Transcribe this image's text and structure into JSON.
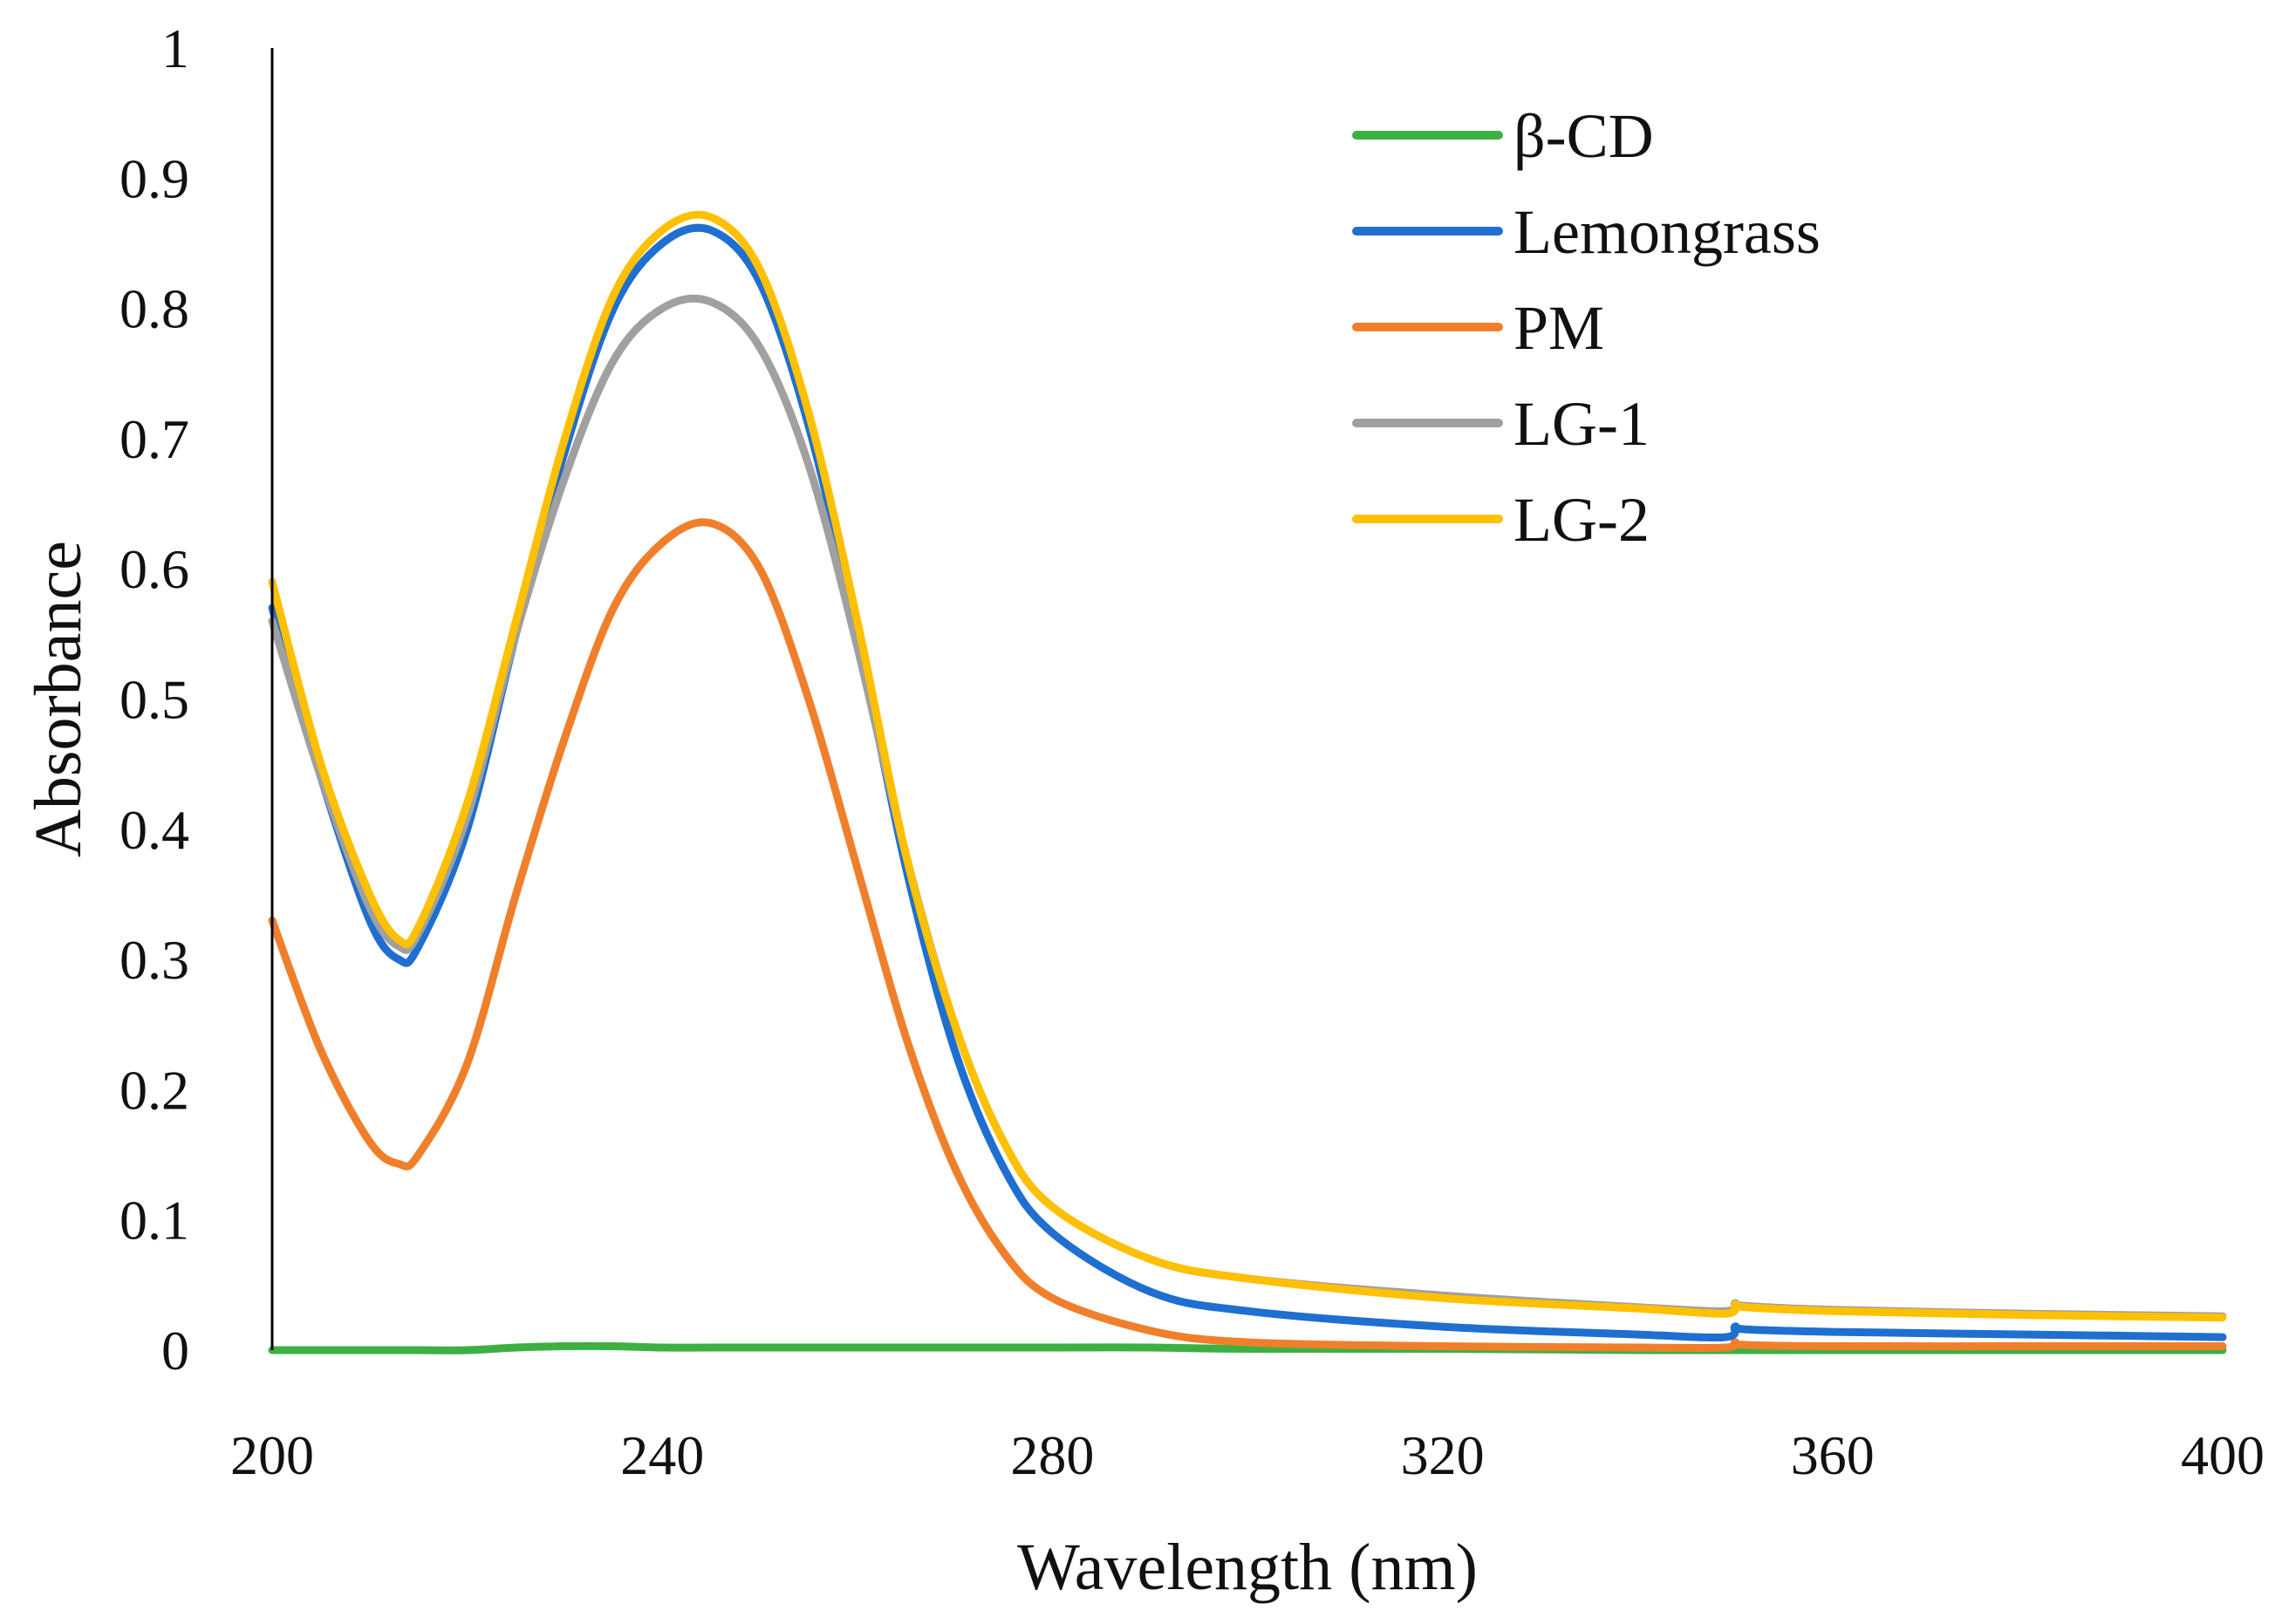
{
  "chart_data": {
    "type": "line",
    "title": "",
    "xlabel": "Wavelength (nm)",
    "ylabel": "Absorbance",
    "xlim": [
      200,
      400
    ],
    "ylim": [
      0,
      1
    ],
    "grid": false,
    "legend_position": "top-right",
    "x_ticks": [
      "200",
      "240",
      "280",
      "320",
      "360",
      "400"
    ],
    "y_ticks": [
      "0",
      "0.1",
      "0.2",
      "0.3",
      "0.4",
      "0.5",
      "0.6",
      "0.7",
      "0.8",
      "0.9",
      "1"
    ],
    "x": [
      200,
      205,
      210,
      213,
      215,
      220,
      225,
      230,
      235,
      240,
      245,
      250,
      255,
      260,
      265,
      270,
      275,
      280,
      290,
      300,
      320,
      340,
      349,
      350,
      351,
      360,
      380,
      400
    ],
    "series": [
      {
        "name": "β-CD",
        "color": "#3CB043",
        "values": [
          0.0,
          0.0,
          0.0,
          0.0,
          0.0,
          0.0,
          0.002,
          0.003,
          0.003,
          0.002,
          0.002,
          0.002,
          0.002,
          0.002,
          0.002,
          0.002,
          0.002,
          0.002,
          0.002,
          0.001,
          0.001,
          0.0,
          0.0,
          0.0,
          0.0,
          0.0,
          0.0,
          0.0
        ]
      },
      {
        "name": "Lemongrass",
        "color": "#1F6FD0",
        "values": [
          0.57,
          0.44,
          0.33,
          0.3,
          0.31,
          0.4,
          0.55,
          0.69,
          0.8,
          0.85,
          0.86,
          0.82,
          0.71,
          0.55,
          0.37,
          0.23,
          0.14,
          0.09,
          0.045,
          0.03,
          0.018,
          0.012,
          0.01,
          0.018,
          0.016,
          0.014,
          0.012,
          0.01
        ]
      },
      {
        "name": "PM",
        "color": "#F07F2C",
        "values": [
          0.33,
          0.23,
          0.16,
          0.143,
          0.15,
          0.22,
          0.35,
          0.47,
          0.57,
          0.62,
          0.635,
          0.6,
          0.5,
          0.37,
          0.24,
          0.14,
          0.075,
          0.04,
          0.015,
          0.006,
          0.003,
          0.002,
          0.002,
          0.006,
          0.004,
          0.003,
          0.003,
          0.003
        ]
      },
      {
        "name": "LG-1",
        "color": "#A0A0A0",
        "values": [
          0.56,
          0.44,
          0.34,
          0.31,
          0.32,
          0.41,
          0.55,
          0.67,
          0.76,
          0.8,
          0.805,
          0.77,
          0.68,
          0.54,
          0.38,
          0.25,
          0.16,
          0.11,
          0.07,
          0.055,
          0.042,
          0.033,
          0.03,
          0.036,
          0.034,
          0.031,
          0.028,
          0.026
        ]
      },
      {
        "name": "LG-2",
        "color": "#FFC000",
        "values": [
          0.59,
          0.45,
          0.35,
          0.315,
          0.325,
          0.42,
          0.56,
          0.7,
          0.81,
          0.86,
          0.87,
          0.83,
          0.72,
          0.56,
          0.38,
          0.25,
          0.16,
          0.11,
          0.07,
          0.055,
          0.04,
          0.032,
          0.028,
          0.035,
          0.033,
          0.03,
          0.027,
          0.025
        ]
      }
    ]
  }
}
